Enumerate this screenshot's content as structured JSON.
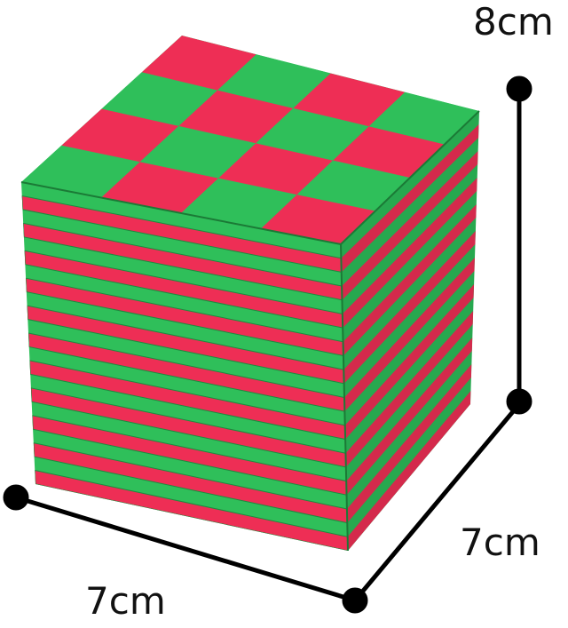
{
  "product": {
    "description_label": "",
    "colors": {
      "red": "#ee2e55",
      "green": "#2fbf5a",
      "line": "#000000"
    }
  },
  "dimensions": {
    "height": "8cm",
    "width": "7cm",
    "depth": "7cm"
  },
  "icons": [
    "dimension-dot-icon"
  ]
}
